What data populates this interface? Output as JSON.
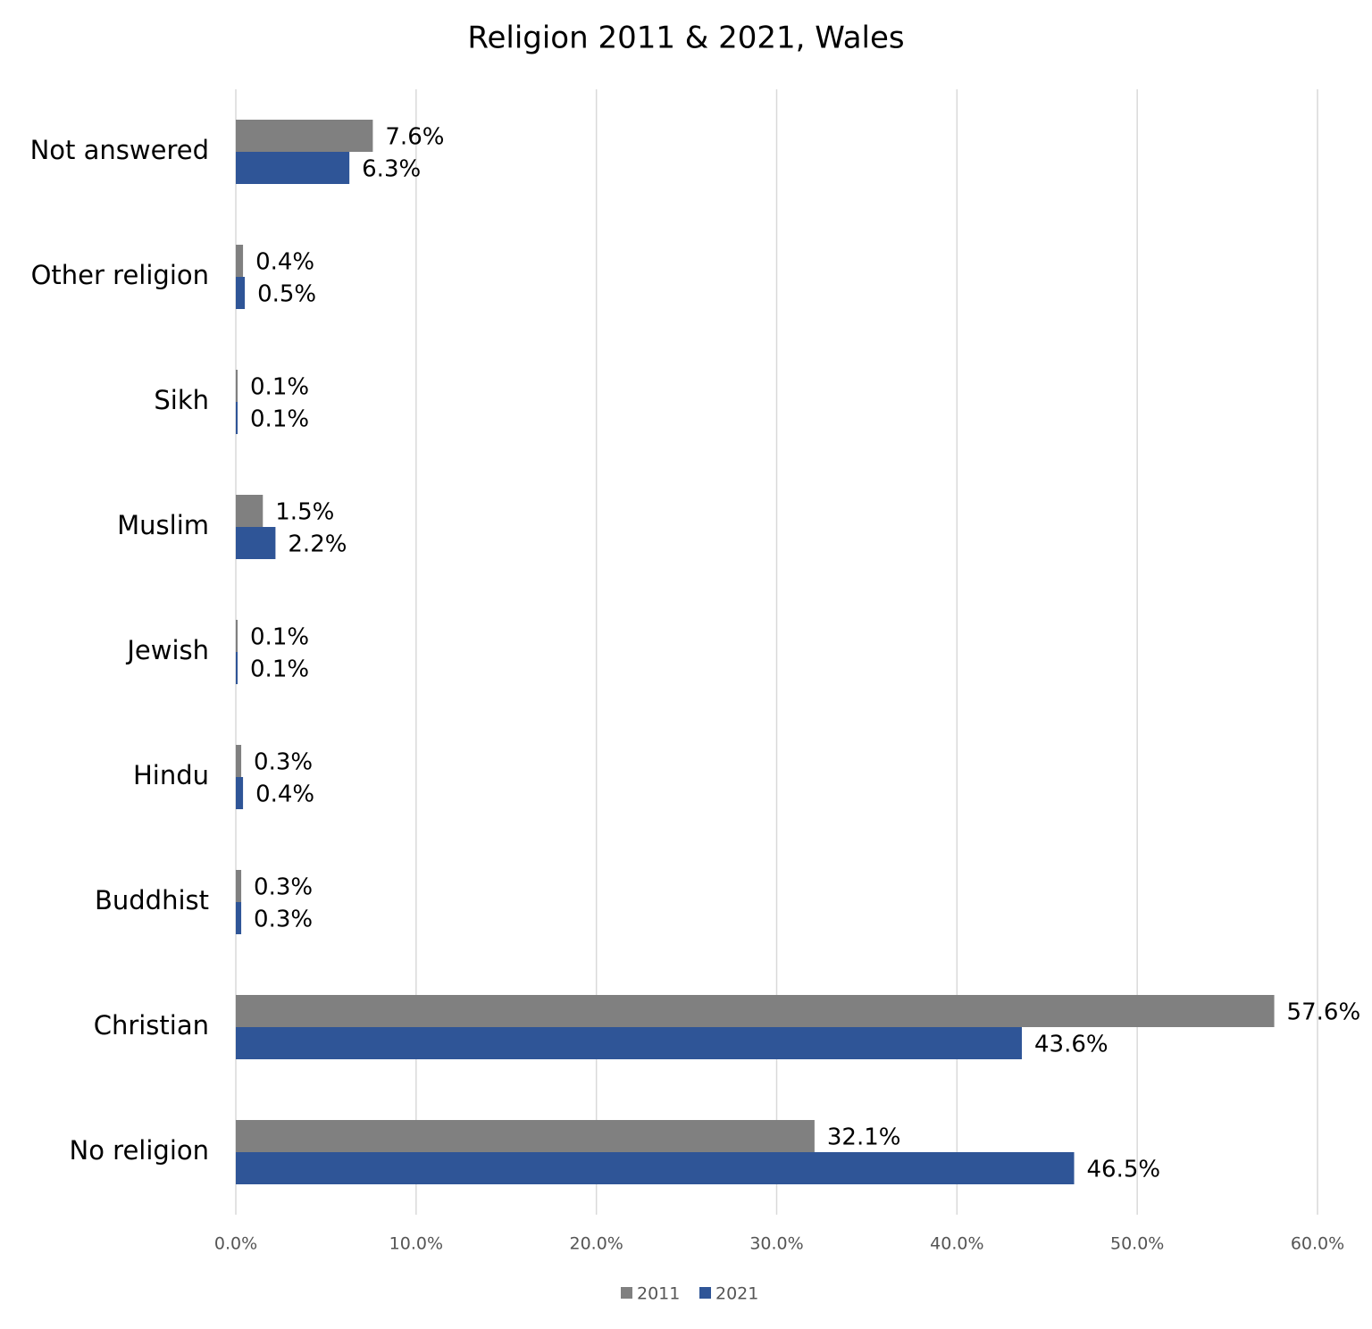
{
  "chart_data": {
    "type": "hbar",
    "title": "Religion 2011 & 2021, Wales",
    "categories": [
      "Not answered",
      "Other religion",
      "Sikh",
      "Muslim",
      "Jewish",
      "Hindu",
      "Buddhist",
      "Christian",
      "No religion"
    ],
    "series": [
      {
        "name": "2011",
        "color": "#808080",
        "values": [
          7.6,
          0.4,
          0.1,
          1.5,
          0.1,
          0.3,
          0.3,
          57.6,
          32.1
        ],
        "value_labels": [
          "7.6%",
          "0.4%",
          "0.1%",
          "1.5%",
          "0.1%",
          "0.3%",
          "0.3%",
          "57.6%",
          "32.1%"
        ]
      },
      {
        "name": "2021",
        "color": "#2f5597",
        "values": [
          6.3,
          0.5,
          0.1,
          2.2,
          0.1,
          0.4,
          0.3,
          43.6,
          46.5
        ],
        "value_labels": [
          "6.3%",
          "0.5%",
          "0.1%",
          "2.2%",
          "0.1%",
          "0.4%",
          "0.3%",
          "43.6%",
          "46.5%"
        ]
      }
    ],
    "xlim": [
      0,
      60
    ],
    "xticks": [
      {
        "value": 0,
        "label": "0.0%"
      },
      {
        "value": 10,
        "label": "10.0%"
      },
      {
        "value": 20,
        "label": "20.0%"
      },
      {
        "value": 30,
        "label": "30.0%"
      },
      {
        "value": 40,
        "label": "40.0%"
      },
      {
        "value": 50,
        "label": "50.0%"
      },
      {
        "value": 60,
        "label": "60.0%"
      }
    ],
    "grid": true,
    "legend": "bottom"
  }
}
